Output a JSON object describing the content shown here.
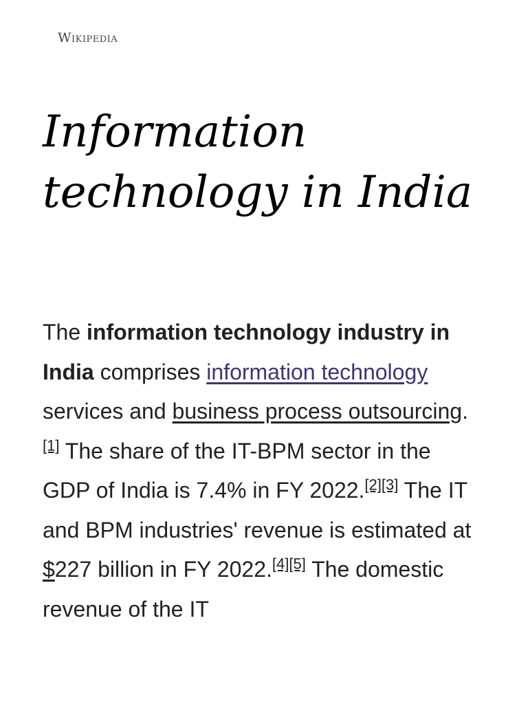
{
  "header": {
    "logo_text": "Wikipedia"
  },
  "article": {
    "title_line1": "Information",
    "title_line2": "technology in India",
    "paragraph": {
      "t1": "The ",
      "bold_1": "information technology industry in India",
      "t2": " comprises ",
      "link_it": "information technology",
      "t3": " services and ",
      "link_bpo": "business process outsourcing",
      "t4": ".",
      "ref1": "[1]",
      "t5": " The share of the IT-BPM sector in the GDP of India is 7.4% in FY 2022.",
      "ref2": "[2]",
      "ref3": "[3]",
      "t6": " The IT and BPM industries' revenue is estimated at ",
      "dollar": "$",
      "t7": "227 billion in FY 2022.",
      "ref4": "[4]",
      "ref5": "[5]",
      "t8": " The domestic revenue of the IT"
    }
  }
}
